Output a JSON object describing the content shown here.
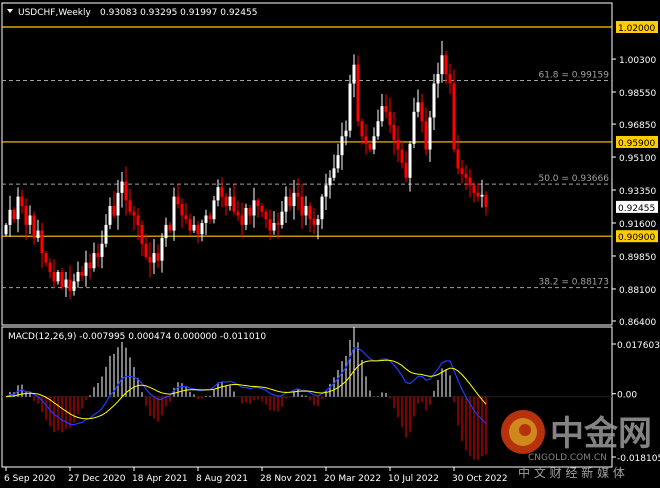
{
  "header": {
    "symbol_timeframe": "USDCHF,Weekly",
    "ohlc_text": "0.93083 0.93295 0.91997 0.92455"
  },
  "colors": {
    "background": "#000000",
    "bull": "#ffffff",
    "bear": "#ff0000",
    "level": "#ffcc00",
    "fib": "#a0a0a0",
    "macd": "#1e3cff",
    "signal": "#ffff00",
    "axis": "#ffffff"
  },
  "price_axis": {
    "ticks": [
      "1.00300",
      "0.98550",
      "0.96850",
      "0.95100",
      "0.93350",
      "0.91600",
      "0.89850",
      "0.88100",
      "0.86400"
    ],
    "range": [
      0.864,
      1.02
    ],
    "current_price": "0.92455"
  },
  "levels": [
    {
      "value": 1.02,
      "label": "1.02000"
    },
    {
      "value": 0.959,
      "label": "0.95900"
    },
    {
      "value": 0.909,
      "label": "0.90900"
    }
  ],
  "fibs": [
    {
      "value": 0.99159,
      "label": "61.8 = 0.99159"
    },
    {
      "value": 0.93666,
      "label": "50.0 = 0.93666"
    },
    {
      "value": 0.88173,
      "label": "38.2 = 0.88173"
    }
  ],
  "macd": {
    "label": "MACD(12,26,9) -0.007995 0.000474 0.000000 -0.011010",
    "ticks": [
      "0.017603",
      "0.00",
      "-0.018105"
    ],
    "range": [
      -0.018105,
      0.017603
    ]
  },
  "time_axis": [
    "6 Sep 2020",
    "27 Dec 2020",
    "18 Apr 2021",
    "8 Aug 2021",
    "28 Nov 2021",
    "20 Mar 2022",
    "10 Jul 2022",
    "30 Oct 2022"
  ],
  "watermark": {
    "brand": "中金网",
    "domain": "CNGOLD.COM.CN",
    "tagline": "中 文 财 经 新 媒 体"
  },
  "chart_data": {
    "type": "candlestick",
    "timeframe": "weekly",
    "first_week": "6 Sep 2020",
    "closes": [
      0.915,
      0.923,
      0.918,
      0.93,
      0.925,
      0.915,
      0.92,
      0.908,
      0.912,
      0.9,
      0.895,
      0.89,
      0.885,
      0.89,
      0.882,
      0.886,
      0.88,
      0.885,
      0.89,
      0.888,
      0.895,
      0.892,
      0.9,
      0.898,
      0.905,
      0.915,
      0.925,
      0.92,
      0.932,
      0.938,
      0.928,
      0.922,
      0.92,
      0.915,
      0.905,
      0.898,
      0.895,
      0.9,
      0.896,
      0.908,
      0.915,
      0.912,
      0.93,
      0.926,
      0.92,
      0.918,
      0.912,
      0.915,
      0.91,
      0.916,
      0.92,
      0.918,
      0.928,
      0.935,
      0.93,
      0.925,
      0.93,
      0.922,
      0.92,
      0.915,
      0.924,
      0.92,
      0.928,
      0.925,
      0.922,
      0.918,
      0.912,
      0.916,
      0.915,
      0.922,
      0.93,
      0.925,
      0.932,
      0.93,
      0.92,
      0.925,
      0.918,
      0.915,
      0.918,
      0.93,
      0.936,
      0.94,
      0.945,
      0.952,
      0.962,
      0.965,
      0.99,
      1.0,
      0.97,
      0.962,
      0.958,
      0.955,
      0.962,
      0.97,
      0.978,
      0.975,
      0.968,
      0.96,
      0.955,
      0.948,
      0.94,
      0.958,
      0.975,
      0.98,
      0.97,
      0.955,
      0.972,
      0.99,
      0.995,
      1.005,
      0.995,
      0.99,
      0.955,
      0.945,
      0.942,
      0.94,
      0.936,
      0.932,
      0.93,
      0.931,
      0.92455
    ],
    "last_candle": {
      "open": 0.93083,
      "high": 0.93295,
      "low": 0.91997,
      "close": 0.92455
    }
  }
}
